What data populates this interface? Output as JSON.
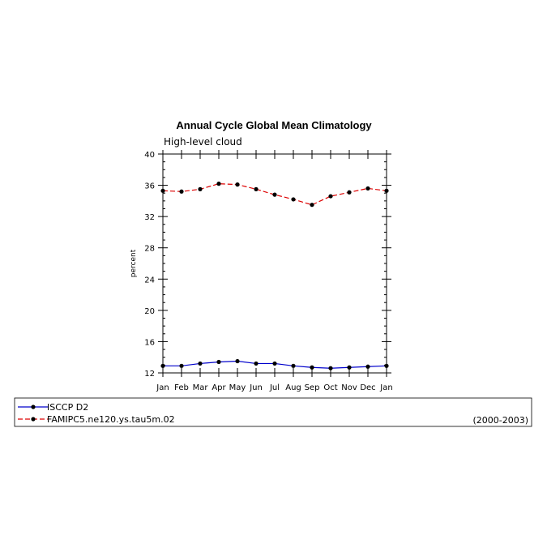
{
  "chart_data": {
    "type": "line",
    "title": "Annual Cycle Global Mean Climatology",
    "subtitle": "High-level cloud",
    "xlabel": "",
    "ylabel": "percent",
    "categories": [
      "Jan",
      "Feb",
      "Mar",
      "Apr",
      "May",
      "Jun",
      "Jul",
      "Aug",
      "Sep",
      "Oct",
      "Nov",
      "Dec",
      "Jan"
    ],
    "ylim": [
      12,
      40
    ],
    "yticks": [
      12,
      16,
      20,
      24,
      28,
      32,
      36,
      40
    ],
    "yticks_minor_step": 1,
    "grid": false,
    "legend_placement": "bottom",
    "series": [
      {
        "name": "ISCCP D2",
        "color": "#0000cc",
        "dash": "solid",
        "values": [
          12.9,
          12.9,
          13.2,
          13.4,
          13.5,
          13.2,
          13.2,
          12.9,
          12.7,
          12.6,
          12.7,
          12.8,
          12.9
        ]
      },
      {
        "name": "FAMIPC5.ne120.ys.tau5m.02",
        "color": "#dd0000",
        "dash": "dashed",
        "values": [
          35.3,
          35.2,
          35.5,
          36.2,
          36.1,
          35.5,
          34.8,
          34.2,
          33.5,
          34.6,
          35.1,
          35.6,
          35.3
        ]
      }
    ],
    "legend_note": "(2000-2003)"
  }
}
